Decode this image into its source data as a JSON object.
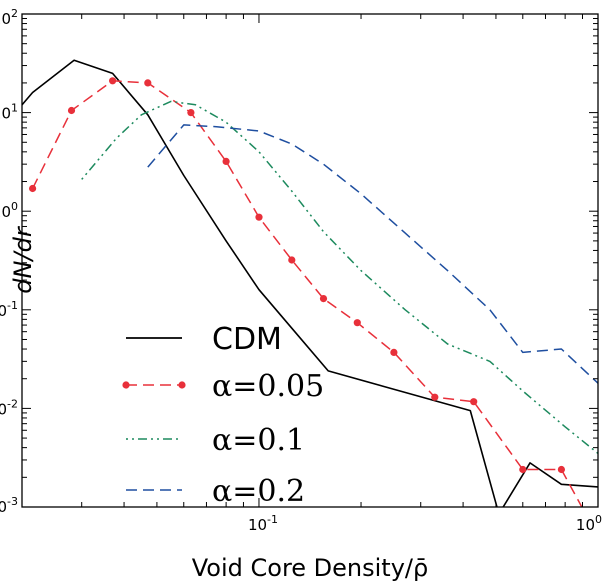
{
  "chart_data": {
    "type": "line",
    "xscale": "log",
    "yscale": "log",
    "xlim": [
      0.02,
      1.0
    ],
    "ylim": [
      0.001,
      100
    ],
    "xlabel": "Void Core Density/ρ̄",
    "ylabel": "dN/dr",
    "grid": false,
    "legend_position": "bottom-left",
    "x_ticks": [
      {
        "base": "10",
        "exp": "-1",
        "value": 0.1
      },
      {
        "base": "10",
        "exp": "0",
        "value": 1
      }
    ],
    "y_ticks": [
      {
        "base": "10",
        "exp": "-3",
        "value": 0.001
      },
      {
        "base": "10",
        "exp": "-2",
        "value": 0.01
      },
      {
        "base": "10",
        "exp": "-1",
        "value": 0.1
      },
      {
        "base": "10",
        "exp": "0",
        "value": 1
      },
      {
        "base": "10",
        "exp": "1",
        "value": 10
      },
      {
        "base": "10",
        "exp": "2",
        "value": 100
      }
    ],
    "series": [
      {
        "name": "CDM",
        "legend_text": "CDM",
        "legend_is_math": false,
        "color": "#000000",
        "style": "solid",
        "marker": "none",
        "points": [
          [
            0.02,
            12
          ],
          [
            0.0215,
            16
          ],
          [
            0.0285,
            34
          ],
          [
            0.037,
            25
          ],
          [
            0.047,
            9.5
          ],
          [
            0.06,
            2.3
          ],
          [
            0.08,
            0.5
          ],
          [
            0.1,
            0.16
          ],
          [
            0.125,
            0.065
          ],
          [
            0.16,
            0.024
          ],
          [
            0.42,
            0.0095
          ],
          [
            0.51,
            0.00085
          ],
          [
            0.63,
            0.0028
          ],
          [
            0.78,
            0.0017
          ],
          [
            1.0,
            0.0016
          ]
        ]
      },
      {
        "name": "α=0.05",
        "legend_text": "α=0.05",
        "legend_is_math": true,
        "color": "#e8303a",
        "style": "dashed",
        "marker": "circle",
        "points": [
          [
            0.0215,
            1.7
          ],
          [
            0.028,
            10.5
          ],
          [
            0.037,
            21
          ],
          [
            0.047,
            20
          ],
          [
            0.063,
            10
          ],
          [
            0.08,
            3.2
          ],
          [
            0.1,
            0.87
          ],
          [
            0.125,
            0.32
          ],
          [
            0.155,
            0.13
          ],
          [
            0.195,
            0.074
          ],
          [
            0.25,
            0.037
          ],
          [
            0.33,
            0.013
          ],
          [
            0.43,
            0.0117
          ],
          [
            0.6,
            0.0024
          ],
          [
            0.78,
            0.0024
          ],
          [
            1.0,
            0.0005
          ]
        ]
      },
      {
        "name": "α=0.1",
        "legend_text": "α=0.1",
        "legend_is_math": true,
        "color": "#1d8a5e",
        "style": "dashdot",
        "marker": "none",
        "points": [
          [
            0.03,
            2.1
          ],
          [
            0.038,
            5.5
          ],
          [
            0.045,
            9.5
          ],
          [
            0.055,
            13
          ],
          [
            0.065,
            12
          ],
          [
            0.08,
            8
          ],
          [
            0.1,
            4
          ],
          [
            0.125,
            1.6
          ],
          [
            0.155,
            0.62
          ],
          [
            0.2,
            0.25
          ],
          [
            0.27,
            0.1
          ],
          [
            0.36,
            0.045
          ],
          [
            0.48,
            0.03
          ],
          [
            0.6,
            0.015
          ],
          [
            0.8,
            0.0065
          ],
          [
            1.0,
            0.0035
          ]
        ]
      },
      {
        "name": "α=0.2",
        "legend_text": "α=0.2",
        "legend_is_math": true,
        "color": "#1f4fa0",
        "style": "dashed",
        "marker": "none",
        "points": [
          [
            0.047,
            2.8
          ],
          [
            0.06,
            7.5
          ],
          [
            0.075,
            7.2
          ],
          [
            0.1,
            6.5
          ],
          [
            0.125,
            4.8
          ],
          [
            0.155,
            3
          ],
          [
            0.2,
            1.5
          ],
          [
            0.27,
            0.6
          ],
          [
            0.36,
            0.25
          ],
          [
            0.48,
            0.1
          ],
          [
            0.6,
            0.037
          ],
          [
            0.78,
            0.04
          ],
          [
            1.0,
            0.018
          ]
        ]
      }
    ]
  }
}
